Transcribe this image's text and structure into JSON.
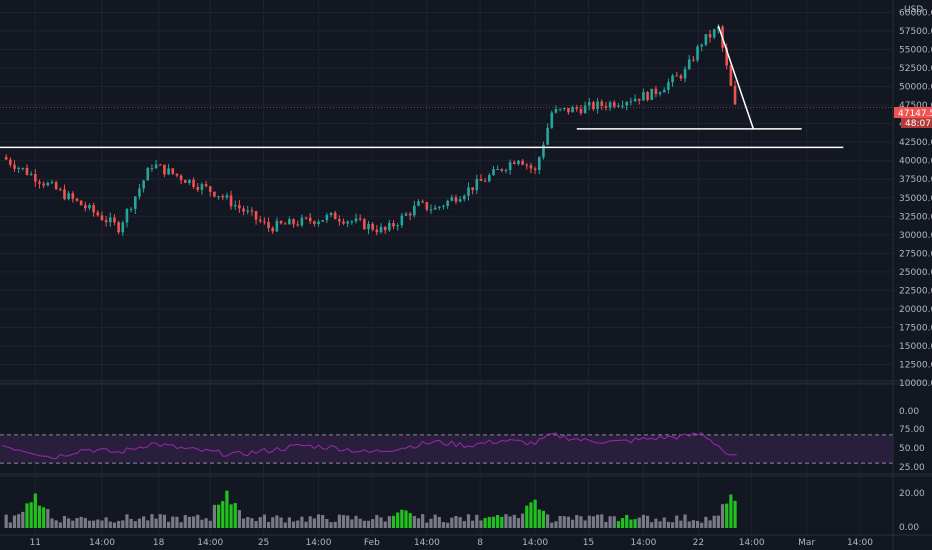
{
  "currency": "USD",
  "colors": {
    "background": "#131722",
    "grid": "#1f2330",
    "axis_text": "#b2b5be",
    "up": "#26a69a",
    "down": "#ef5350",
    "price_label_bg": "#f05350",
    "rsi_line": "#9c27b0",
    "rsi_band": "#2a1e3d",
    "volume_gray": "#787b86",
    "volume_green": "#22c11f",
    "drawing": "#ffffff"
  },
  "price_axis": {
    "ticks": [
      "60000.00",
      "57500.00",
      "55000.00",
      "52500.00",
      "50000.00",
      "47500.00",
      "45000.00",
      "42500.00",
      "40000.00",
      "37500.00",
      "35000.00",
      "32500.00",
      "30000.00",
      "27500.00",
      "25000.00",
      "22500.00",
      "20000.00",
      "17500.00",
      "15000.00",
      "12500.00",
      "10000.00"
    ],
    "last_price": "47147.59",
    "countdown": "48:07"
  },
  "rsi_axis": {
    "ticks": [
      "75.00",
      "50.00",
      "25.00"
    ],
    "top_label": "0.00"
  },
  "volume_axis": {
    "ticks": [
      "20.00",
      "0.00"
    ]
  },
  "time_axis": {
    "labels": [
      "11",
      "14:00",
      "18",
      "14:00",
      "25",
      "14:00",
      "Feb",
      "14:00",
      "8",
      "14:00",
      "15",
      "14:00",
      "22",
      "14:00",
      "Mar",
      "14:00"
    ]
  },
  "chart_data": {
    "type": "candlestick",
    "title": "",
    "ylabel": "USD",
    "ylim": [
      10000,
      60000
    ],
    "segments": [
      {
        "from_day": 0,
        "to_day": 7,
        "start": 40500,
        "end": 31000
      },
      {
        "from_day": 7,
        "to_day": 9,
        "start": 31000,
        "end": 39500
      },
      {
        "from_day": 9,
        "to_day": 13,
        "start": 39500,
        "end": 35500
      },
      {
        "from_day": 13,
        "to_day": 16,
        "start": 35500,
        "end": 31000
      },
      {
        "from_day": 16,
        "to_day": 20,
        "start": 31000,
        "end": 32500
      },
      {
        "from_day": 20,
        "to_day": 23,
        "start": 32500,
        "end": 30500
      },
      {
        "from_day": 23,
        "to_day": 25,
        "start": 30500,
        "end": 34000
      },
      {
        "from_day": 25,
        "to_day": 26,
        "start": 34000,
        "end": 33500
      },
      {
        "from_day": 26,
        "to_day": 29,
        "start": 33500,
        "end": 37500
      },
      {
        "from_day": 29,
        "to_day": 31,
        "start": 37500,
        "end": 40500
      },
      {
        "from_day": 31,
        "to_day": 32,
        "start": 40500,
        "end": 38500
      },
      {
        "from_day": 32,
        "to_day": 33,
        "start": 38500,
        "end": 46500
      },
      {
        "from_day": 33,
        "to_day": 36,
        "start": 46500,
        "end": 47500
      },
      {
        "from_day": 36,
        "to_day": 39,
        "start": 47500,
        "end": 49000
      },
      {
        "from_day": 39,
        "to_day": 41,
        "start": 49000,
        "end": 52000
      },
      {
        "from_day": 41,
        "to_day": 42,
        "start": 52000,
        "end": 56000
      },
      {
        "from_day": 42,
        "to_day": 43,
        "start": 56000,
        "end": 57800
      },
      {
        "from_day": 43,
        "to_day": 44,
        "start": 57800,
        "end": 47200
      }
    ],
    "rsi": {
      "upper": 70,
      "lower": 30,
      "points": [
        [
          0,
          55
        ],
        [
          2,
          45
        ],
        [
          3,
          38
        ],
        [
          5,
          50
        ],
        [
          7,
          45
        ],
        [
          9,
          58
        ],
        [
          11,
          50
        ],
        [
          14,
          42
        ],
        [
          16,
          48
        ],
        [
          18,
          55
        ],
        [
          20,
          52
        ],
        [
          22,
          45
        ],
        [
          24,
          52
        ],
        [
          26,
          60
        ],
        [
          28,
          55
        ],
        [
          30,
          62
        ],
        [
          32,
          58
        ],
        [
          33,
          70
        ],
        [
          35,
          62
        ],
        [
          37,
          60
        ],
        [
          39,
          65
        ],
        [
          41,
          68
        ],
        [
          42,
          72
        ],
        [
          43,
          55
        ],
        [
          43.7,
          38
        ],
        [
          44.1,
          42
        ]
      ]
    },
    "volume": {
      "spikes": [
        {
          "day": 2,
          "value": 20,
          "color": "green"
        },
        {
          "day": 13.5,
          "value": 22,
          "color": "green"
        },
        {
          "day": 24,
          "value": 12,
          "color": "green"
        },
        {
          "day": 29.5,
          "value": 9,
          "color": "green"
        },
        {
          "day": 32,
          "value": 17,
          "color": "green"
        },
        {
          "day": 37.5,
          "value": 6,
          "color": "green"
        },
        {
          "day": 44,
          "value": 22,
          "color": "green"
        }
      ]
    },
    "drawings": [
      {
        "type": "horizontal",
        "price": 41800,
        "from_day": -1,
        "to_day": 50.5
      },
      {
        "type": "horizontal",
        "price": 44300,
        "from_day": 34.5,
        "to_day": 48
      },
      {
        "type": "trend",
        "from": [
          43.0,
          58200
        ],
        "to": [
          45.1,
          44300
        ]
      }
    ]
  }
}
